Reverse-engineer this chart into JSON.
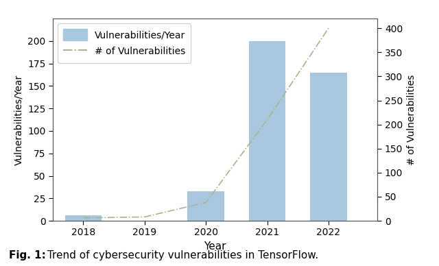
{
  "years": [
    2018,
    2019,
    2020,
    2021,
    2022
  ],
  "bar_values": [
    6,
    0,
    33,
    200,
    165
  ],
  "line_values": [
    6,
    8,
    38,
    210,
    400
  ],
  "bar_color": "#a8c8e0",
  "line_color": "#b0b090",
  "bar_label": "Vulnerabilities/Year",
  "line_label": "# of Vulnerabilities",
  "xlabel": "Year",
  "ylabel_left": "Vulnerabilities/Year",
  "ylabel_right": "# of Vulnerabilities",
  "ylim_left": [
    0,
    225
  ],
  "ylim_right": [
    0,
    420
  ],
  "yticks_left": [
    0,
    25,
    50,
    75,
    100,
    125,
    150,
    175,
    200
  ],
  "yticks_right": [
    0,
    50,
    100,
    150,
    200,
    250,
    300,
    350,
    400
  ],
  "caption_bold": "Fig. 1:",
  "caption_normal": " Trend of cybersecurity vulnerabilities in TensorFlow.",
  "figsize": [
    6.4,
    3.88
  ],
  "dpi": 100
}
